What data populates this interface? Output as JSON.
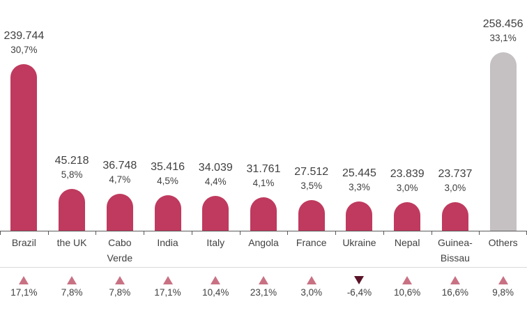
{
  "colors": {
    "bar_default": "#bf3a5e",
    "bar_others": "#c5c0c2",
    "triangle_up": "#c97183",
    "triangle_down": "#5a1328",
    "text": "#3f3f3f",
    "axis": "#595959",
    "separator": "#d9d9d9"
  },
  "chart_data": {
    "type": "bar",
    "title": "",
    "xlabel": "",
    "ylabel": "",
    "grid": false,
    "legend": "none",
    "ylim": [
      0,
      258456
    ],
    "categories": [
      "Brazil",
      "the UK",
      "Cabo Verde",
      "India",
      "Italy",
      "Angola",
      "France",
      "Ukraine",
      "Nepal",
      "Guinea-Bissau",
      "Others"
    ],
    "series": [
      {
        "name": "value",
        "values": [
          239744,
          45218,
          36748,
          35416,
          34039,
          31761,
          27512,
          25445,
          23839,
          23737,
          258456
        ]
      },
      {
        "name": "share_pct",
        "values": [
          30.7,
          5.8,
          4.7,
          4.5,
          4.4,
          4.1,
          3.5,
          3.3,
          3.0,
          3.0,
          33.1
        ]
      },
      {
        "name": "change_pct",
        "values": [
          17.1,
          7.8,
          7.8,
          17.1,
          10.4,
          23.1,
          3.0,
          -6.4,
          10.6,
          16.6,
          9.8
        ]
      }
    ],
    "value_labels": [
      "239.744",
      "45.218",
      "36.748",
      "35.416",
      "34.039",
      "31.761",
      "27.512",
      "25.445",
      "23.839",
      "23.737",
      "258.456"
    ],
    "share_labels": [
      "30,7%",
      "5,8%",
      "4,7%",
      "4,5%",
      "4,4%",
      "4,1%",
      "3,5%",
      "3,3%",
      "3,0%",
      "3,0%",
      "33,1%"
    ],
    "change_labels": [
      "17,1%",
      "7,8%",
      "7,8%",
      "17,1%",
      "10,4%",
      "23,1%",
      "3,0%",
      "-6,4%",
      "10,6%",
      "16,6%",
      "9,8%"
    ],
    "change_directions": [
      "up",
      "up",
      "up",
      "up",
      "up",
      "up",
      "up",
      "down",
      "up",
      "up",
      "up"
    ],
    "others_category": "Others"
  }
}
